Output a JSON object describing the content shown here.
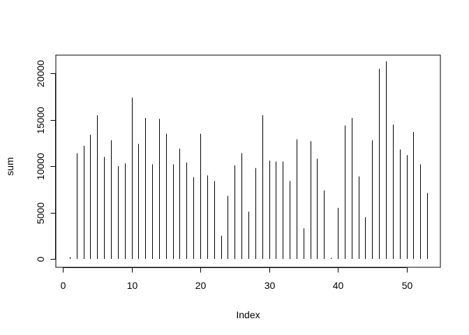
{
  "chart_data": {
    "type": "bar",
    "style": "histogram-lines",
    "title": "",
    "xlabel": "Index",
    "ylabel": "sum",
    "xlim": [
      0,
      54
    ],
    "ylim": [
      0,
      21500
    ],
    "x_ticks": [
      0,
      10,
      20,
      30,
      40,
      50
    ],
    "y_ticks": [
      0,
      5000,
      10000,
      15000,
      20000
    ],
    "x": [
      1,
      2,
      3,
      4,
      5,
      6,
      7,
      8,
      9,
      10,
      11,
      12,
      13,
      14,
      15,
      16,
      17,
      18,
      19,
      20,
      21,
      22,
      23,
      24,
      25,
      26,
      27,
      28,
      29,
      30,
      31,
      32,
      33,
      34,
      35,
      36,
      37,
      38,
      39,
      40,
      41,
      42,
      43,
      44,
      45,
      46,
      47,
      48,
      49,
      50,
      51,
      52,
      53
    ],
    "values": [
      200,
      11400,
      12200,
      13400,
      15500,
      11000,
      12800,
      10000,
      10300,
      17400,
      12400,
      15200,
      10200,
      15100,
      13500,
      10200,
      11900,
      10400,
      8800,
      13500,
      9000,
      8400,
      2500,
      6800,
      10100,
      11400,
      5100,
      9800,
      15500,
      10600,
      10500,
      10500,
      8400,
      12900,
      3300,
      12700,
      10800,
      7400,
      100,
      5500,
      14400,
      15200,
      8900,
      4500,
      12800,
      20500,
      21300,
      14500,
      11800,
      11200,
      13700,
      10200,
      7100
    ],
    "grid": false,
    "legend": "none"
  }
}
